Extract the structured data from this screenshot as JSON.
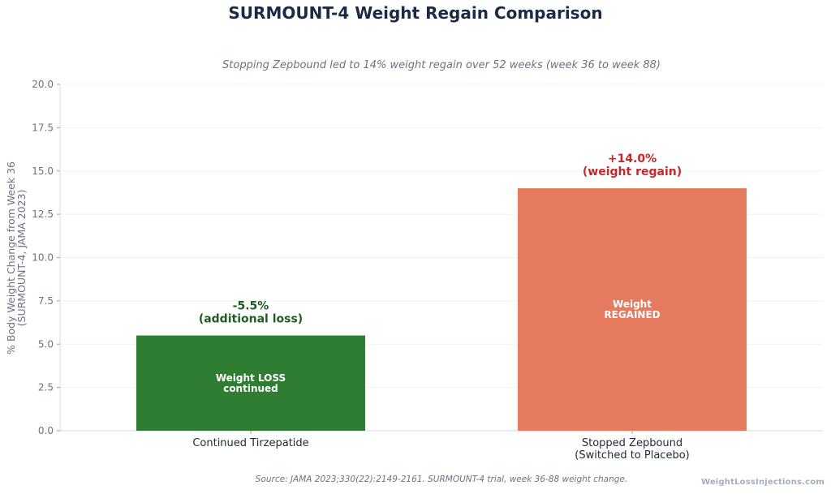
{
  "chart_data": {
    "type": "bar",
    "title": "SURMOUNT-4 Weight Regain Comparison",
    "subtitle": "Stopping Zepbound led to 14% weight regain over 52 weeks (week 36 to week 88)",
    "ylabel_lines": [
      "% Body Weight Change from Week 36",
      "(SURMOUNT-4, JAMA 2023)"
    ],
    "xlabel": "",
    "ylim": [
      0,
      20
    ],
    "yticks": [
      0,
      2.5,
      5,
      7.5,
      10,
      12.5,
      15,
      17.5,
      20
    ],
    "ytick_labels": [
      "0.0",
      "2.5",
      "5.0",
      "7.5",
      "10.0",
      "12.5",
      "15.0",
      "17.5",
      "20.0"
    ],
    "grid": true,
    "categories": [
      [
        "Continued Tirzepatide"
      ],
      [
        "Stopped Zepbound",
        "(Switched to Placebo)"
      ]
    ],
    "values": [
      5.5,
      14.0
    ],
    "colors": [
      "#2e7d32",
      "#e67a5e"
    ],
    "value_labels": [
      [
        "-5.5%",
        "(additional loss)"
      ],
      [
        "+14.0%",
        "(weight regain)"
      ]
    ],
    "value_label_colors": [
      "#1b5e20",
      "#c62828"
    ],
    "inner_labels": [
      [
        "Weight LOSS",
        "continued"
      ],
      [
        "Weight",
        "REGAINED"
      ]
    ]
  },
  "source": "Source: JAMA 2023;330(22):2149-2161. SURMOUNT-4 trial, week 36-88 weight change.",
  "brand": "WeightLossInjections.com"
}
